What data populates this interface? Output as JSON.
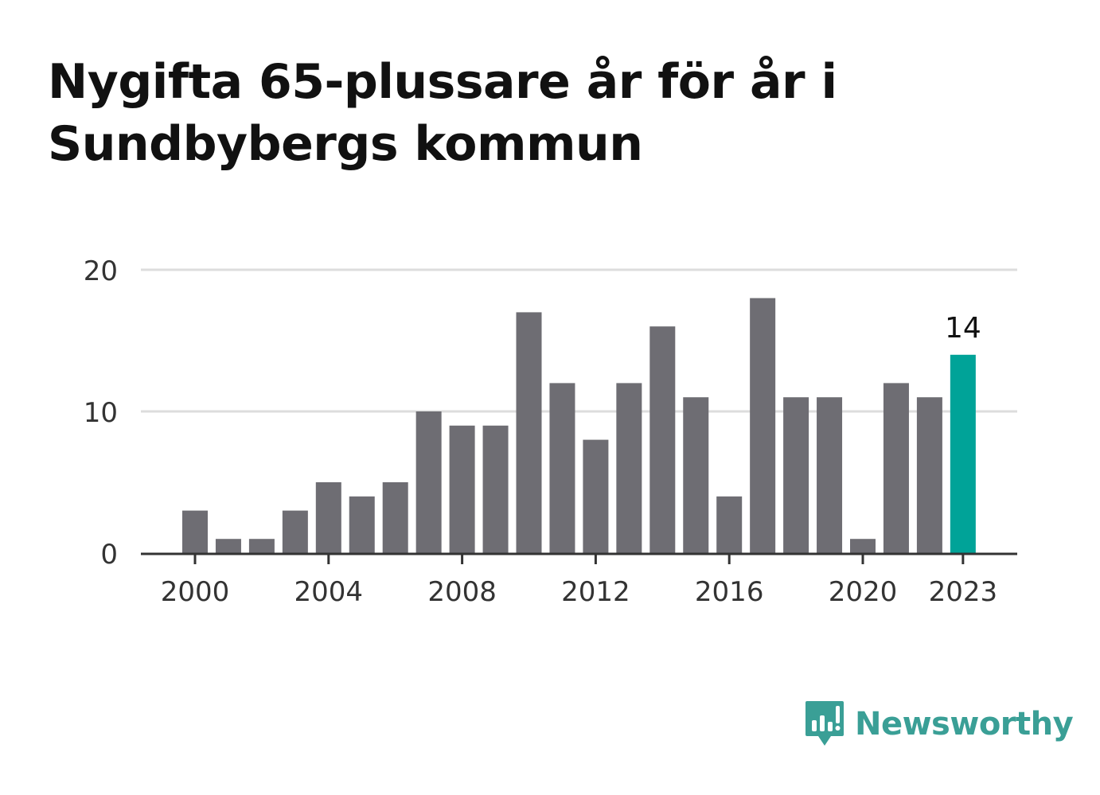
{
  "title": "Nygifta 65-plussare år för år i Sundbybergs kommun",
  "brand": {
    "name": "Newsworthy",
    "icon": "newsworthy-logo-icon"
  },
  "colors": {
    "bar": "#6e6d73",
    "highlight": "#00a398",
    "grid": "#dddddd",
    "axis": "#333333",
    "brand": "#3a9f96"
  },
  "chart_data": {
    "type": "bar",
    "title": "Nygifta 65-plussare år för år i Sundbybergs kommun",
    "xlabel": "",
    "ylabel": "",
    "categories": [
      "2000",
      "2001",
      "2002",
      "2003",
      "2004",
      "2005",
      "2006",
      "2007",
      "2008",
      "2009",
      "2010",
      "2011",
      "2012",
      "2013",
      "2014",
      "2015",
      "2016",
      "2017",
      "2018",
      "2019",
      "2020",
      "2021",
      "2022",
      "2023"
    ],
    "values": [
      3,
      1,
      1,
      3,
      5,
      4,
      5,
      10,
      9,
      9,
      17,
      12,
      8,
      12,
      16,
      11,
      4,
      18,
      11,
      11,
      1,
      12,
      11,
      14
    ],
    "ylim": [
      0,
      20
    ],
    "yticks": [
      "0",
      "10",
      "20"
    ],
    "xticks": [
      "2000",
      "2004",
      "2008",
      "2012",
      "2016",
      "2020",
      "2023"
    ],
    "highlight": {
      "category": "2023",
      "label": "14"
    },
    "grid": true
  }
}
